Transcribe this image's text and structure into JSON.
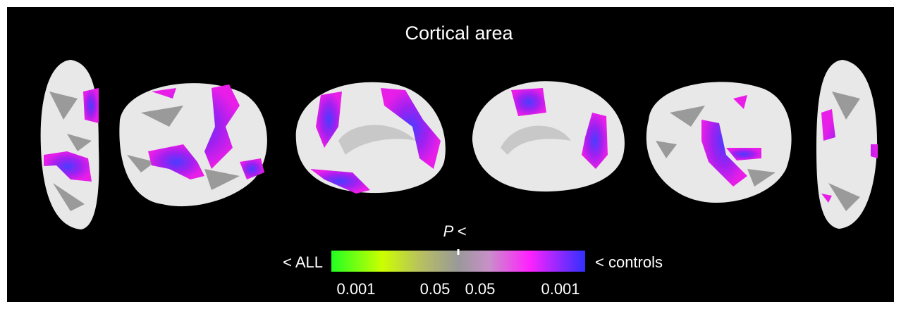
{
  "title": "Cortical area",
  "colorbar": {
    "label": "P <",
    "left_label": "< ALL",
    "right_label": "< controls",
    "ticks": [
      "0.001",
      "0.05",
      "0.05",
      "0.001"
    ]
  }
}
